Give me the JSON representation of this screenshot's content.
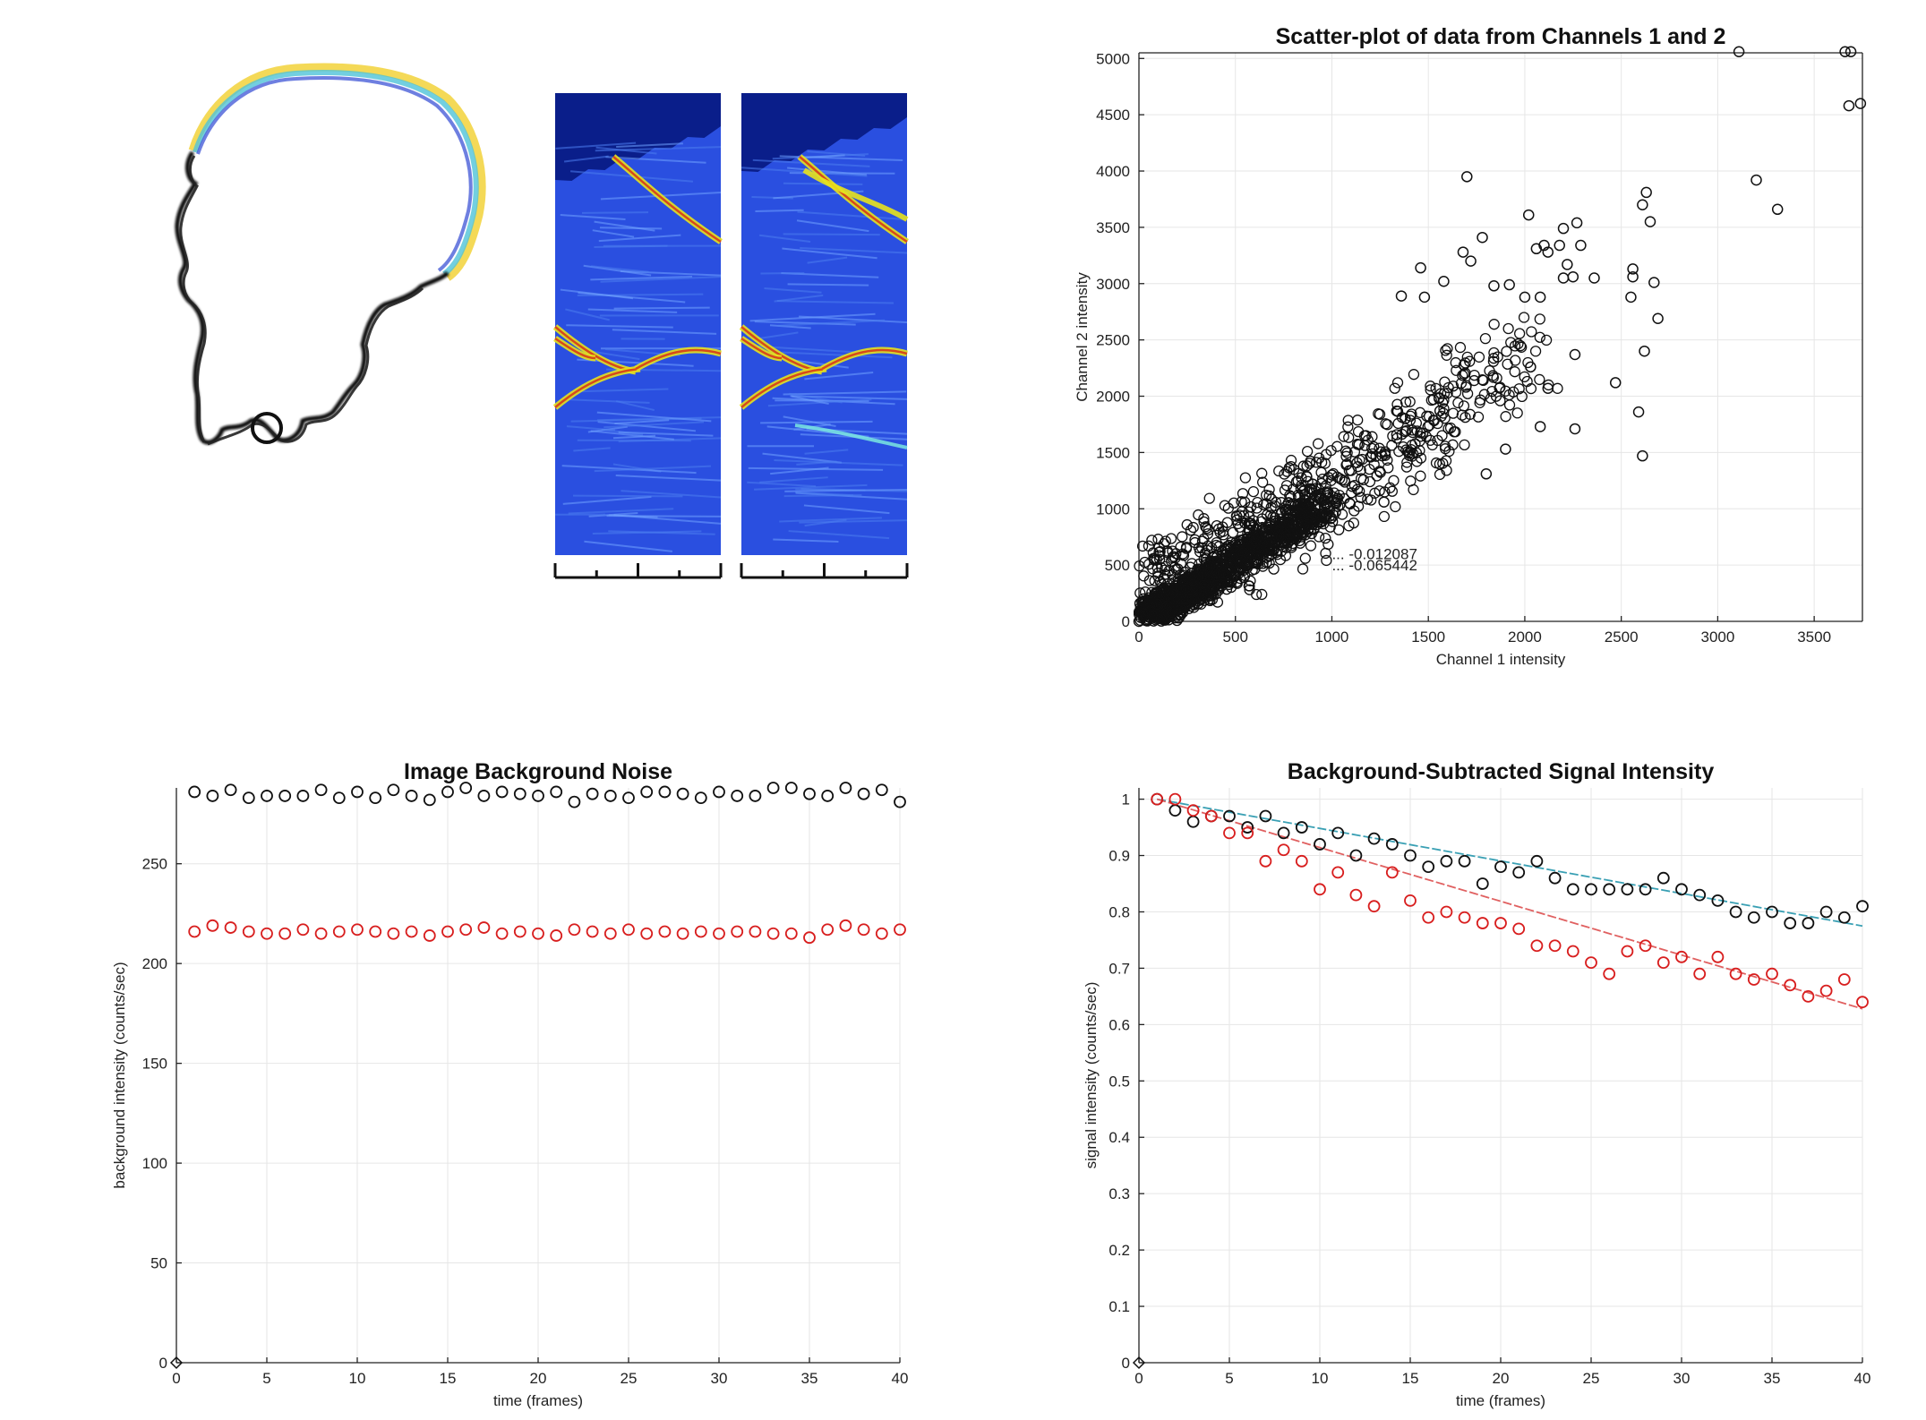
{
  "colors": {
    "series_black": "#111111",
    "series_red": "#d81e1e",
    "fit_cyan": "#3aa0b4",
    "fit_red": "#e06060",
    "heatmap_bg": "#2a4fe0",
    "heatmap_dark": "#0a1e8a"
  },
  "kymograph": {
    "x_ticks": [
      "",
      "",
      "",
      "",
      ""
    ]
  },
  "chart_data": [
    {
      "type": "scatter",
      "title": "Scatter-plot of data from Channels 1 and 2",
      "xlabel": "Channel 1 intensity",
      "ylabel": "Channel 2 intensity",
      "xlim": [
        0,
        3750
      ],
      "ylim": [
        0,
        5050
      ],
      "xticks": [
        0,
        500,
        1000,
        1500,
        2000,
        2500,
        3000,
        3500
      ],
      "yticks": [
        0,
        500,
        1000,
        1500,
        2000,
        2500,
        3000,
        3500,
        4000,
        4500,
        5000
      ],
      "grid": true,
      "annotations": [
        "... -0.012087",
        "... -0.065442"
      ],
      "series": [
        {
          "marker": "circle",
          "points": [
            [
              3110,
              5060
            ],
            [
              3660,
              5060
            ],
            [
              3690,
              5060
            ],
            [
              3680,
              4580
            ],
            [
              3740,
              4600
            ],
            [
              3200,
              3920
            ],
            [
              3310,
              3660
            ],
            [
              1700,
              3950
            ],
            [
              2610,
              3700
            ],
            [
              2630,
              3810
            ],
            [
              2650,
              3550
            ],
            [
              2020,
              3610
            ],
            [
              2270,
              3540
            ],
            [
              2200,
              3490
            ],
            [
              2180,
              3340
            ],
            [
              2060,
              3310
            ],
            [
              2100,
              3340
            ],
            [
              2120,
              3280
            ],
            [
              2290,
              3340
            ],
            [
              2360,
              3050
            ],
            [
              2220,
              3170
            ],
            [
              2560,
              3060
            ],
            [
              2560,
              3130
            ],
            [
              2670,
              3010
            ],
            [
              2550,
              2880
            ],
            [
              2690,
              2690
            ],
            [
              2080,
              2880
            ],
            [
              2000,
              2880
            ],
            [
              1920,
              2990
            ],
            [
              2200,
              3050
            ],
            [
              1680,
              3280
            ],
            [
              1780,
              3410
            ],
            [
              1840,
              2980
            ],
            [
              2250,
              3060
            ],
            [
              1460,
              3140
            ],
            [
              1360,
              2890
            ],
            [
              1480,
              2880
            ],
            [
              1580,
              3020
            ],
            [
              1720,
              3200
            ],
            [
              2620,
              2400
            ],
            [
              2260,
              2370
            ],
            [
              2030,
              2260
            ],
            [
              2120,
              2070
            ],
            [
              2470,
              2120
            ],
            [
              2080,
              1730
            ],
            [
              2260,
              1710
            ],
            [
              2590,
              1860
            ],
            [
              2610,
              1470
            ],
            [
              1900,
              1530
            ],
            [
              1800,
              1310
            ],
            [
              1560,
              1870
            ],
            [
              1380,
              1800
            ],
            [
              1200,
              1460
            ],
            [
              1140,
              1570
            ],
            [
              1270,
              1060
            ],
            [
              1150,
              1100
            ],
            [
              980,
              1150
            ],
            [
              900,
              1220
            ],
            [
              1000,
              1300
            ],
            [
              1100,
              1340
            ]
          ]
        }
      ]
    },
    {
      "type": "scatter",
      "title": "Image Background Noise",
      "xlabel": "time (frames)",
      "ylabel": "background intensity (counts/sec)",
      "xlim": [
        0,
        40
      ],
      "ylim": [
        0,
        288
      ],
      "xticks": [
        0,
        5,
        10,
        15,
        20,
        25,
        30,
        35,
        40
      ],
      "yticks": [
        0,
        50,
        100,
        150,
        200,
        250
      ],
      "grid": true,
      "x": [
        1,
        2,
        3,
        4,
        5,
        6,
        7,
        8,
        9,
        10,
        11,
        12,
        13,
        14,
        15,
        16,
        17,
        18,
        19,
        20,
        21,
        22,
        23,
        24,
        25,
        26,
        27,
        28,
        29,
        30,
        31,
        32,
        33,
        34,
        35,
        36,
        37,
        38,
        39,
        40
      ],
      "series": [
        {
          "color": "#111111",
          "values": [
            286,
            284,
            287,
            283,
            284,
            284,
            284,
            287,
            283,
            286,
            283,
            287,
            284,
            282,
            286,
            288,
            284,
            286,
            285,
            284,
            286,
            281,
            285,
            284,
            283,
            286,
            286,
            285,
            283,
            286,
            284,
            284,
            288,
            288,
            285,
            284,
            288,
            285,
            287,
            281
          ]
        },
        {
          "color": "#d81e1e",
          "values": [
            216,
            219,
            218,
            216,
            215,
            215,
            217,
            215,
            216,
            217,
            216,
            215,
            216,
            214,
            216,
            217,
            218,
            215,
            216,
            215,
            214,
            217,
            216,
            215,
            217,
            215,
            216,
            215,
            216,
            215,
            216,
            216,
            215,
            215,
            213,
            217,
            219,
            217,
            215,
            217
          ]
        }
      ]
    },
    {
      "type": "scatter",
      "title": "Background-Subtracted Signal Intensity",
      "xlabel": "time (frames)",
      "ylabel": "signal intensity (counts/sec)",
      "xlim": [
        0,
        40
      ],
      "ylim": [
        0,
        1.02
      ],
      "xticks": [
        0,
        5,
        10,
        15,
        20,
        25,
        30,
        35,
        40
      ],
      "yticks": [
        0,
        0.1,
        0.2,
        0.3,
        0.4,
        0.5,
        0.6,
        0.7,
        0.8,
        0.9,
        1
      ],
      "ytick_labels": [
        "0",
        "0.1",
        "0.2",
        "0.3",
        "0.4",
        "0.5",
        "0.6",
        "0.7",
        "0.8",
        "0.9",
        "1"
      ],
      "grid": true,
      "x": [
        1,
        2,
        3,
        4,
        5,
        6,
        7,
        8,
        9,
        10,
        11,
        12,
        13,
        14,
        15,
        16,
        17,
        18,
        19,
        20,
        21,
        22,
        23,
        24,
        25,
        26,
        27,
        28,
        29,
        30,
        31,
        32,
        33,
        34,
        35,
        36,
        37,
        38,
        39,
        40
      ],
      "series": [
        {
          "color": "#111111",
          "values": [
            1.0,
            0.98,
            0.96,
            0.97,
            0.97,
            0.95,
            0.97,
            0.94,
            0.95,
            0.92,
            0.94,
            0.9,
            0.93,
            0.92,
            0.9,
            0.88,
            0.89,
            0.89,
            0.85,
            0.88,
            0.87,
            0.89,
            0.86,
            0.84,
            0.84,
            0.84,
            0.84,
            0.84,
            0.86,
            0.84,
            0.83,
            0.82,
            0.8,
            0.79,
            0.8,
            0.78,
            0.78,
            0.8,
            0.79,
            0.81
          ]
        },
        {
          "color": "#d81e1e",
          "values": [
            1.0,
            1.0,
            0.98,
            0.97,
            0.94,
            0.94,
            0.89,
            0.91,
            0.89,
            0.84,
            0.87,
            0.83,
            0.81,
            0.87,
            0.82,
            0.79,
            0.8,
            0.79,
            0.78,
            0.78,
            0.77,
            0.74,
            0.74,
            0.73,
            0.71,
            0.69,
            0.73,
            0.74,
            0.71,
            0.72,
            0.69,
            0.72,
            0.69,
            0.68,
            0.69,
            0.67,
            0.65,
            0.66,
            0.68,
            0.64
          ]
        }
      ],
      "fits": [
        {
          "color": "#3aa0b4",
          "from": [
            1,
            1.0
          ],
          "to": [
            40,
            0.775
          ]
        },
        {
          "color": "#e06060",
          "from": [
            1,
            1.0
          ],
          "to": [
            40,
            0.628
          ]
        }
      ]
    }
  ]
}
